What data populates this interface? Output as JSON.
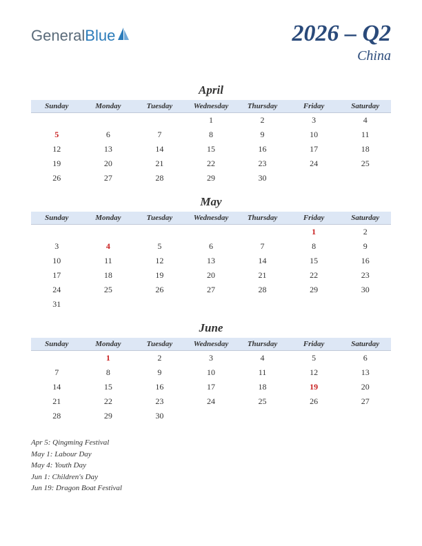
{
  "logo": {
    "part1": "General",
    "part2": "Blue"
  },
  "title": {
    "main": "2026 – Q2",
    "sub": "China"
  },
  "colors": {
    "header_bg": "#dde7f5",
    "title_color": "#2a4a7a",
    "holiday_color": "#c82020",
    "logo_general": "#5a6b7a",
    "logo_blue": "#2b7bb9"
  },
  "day_headers": [
    "Sunday",
    "Monday",
    "Tuesday",
    "Wednesday",
    "Thursday",
    "Friday",
    "Saturday"
  ],
  "months": [
    {
      "name": "April",
      "weeks": [
        [
          "",
          "",
          "",
          "1",
          "2",
          "3",
          "4"
        ],
        [
          "5",
          "6",
          "7",
          "8",
          "9",
          "10",
          "11"
        ],
        [
          "12",
          "13",
          "14",
          "15",
          "16",
          "17",
          "18"
        ],
        [
          "19",
          "20",
          "21",
          "22",
          "23",
          "24",
          "25"
        ],
        [
          "26",
          "27",
          "28",
          "29",
          "30",
          "",
          ""
        ]
      ],
      "holidays": [
        "5"
      ]
    },
    {
      "name": "May",
      "weeks": [
        [
          "",
          "",
          "",
          "",
          "",
          "1",
          "2"
        ],
        [
          "3",
          "4",
          "5",
          "6",
          "7",
          "8",
          "9"
        ],
        [
          "10",
          "11",
          "12",
          "13",
          "14",
          "15",
          "16"
        ],
        [
          "17",
          "18",
          "19",
          "20",
          "21",
          "22",
          "23"
        ],
        [
          "24",
          "25",
          "26",
          "27",
          "28",
          "29",
          "30"
        ],
        [
          "31",
          "",
          "",
          "",
          "",
          "",
          ""
        ]
      ],
      "holidays": [
        "1",
        "4"
      ]
    },
    {
      "name": "June",
      "weeks": [
        [
          "",
          "1",
          "2",
          "3",
          "4",
          "5",
          "6"
        ],
        [
          "7",
          "8",
          "9",
          "10",
          "11",
          "12",
          "13"
        ],
        [
          "14",
          "15",
          "16",
          "17",
          "18",
          "19",
          "20"
        ],
        [
          "21",
          "22",
          "23",
          "24",
          "25",
          "26",
          "27"
        ],
        [
          "28",
          "29",
          "30",
          "",
          "",
          "",
          ""
        ]
      ],
      "holidays": [
        "1",
        "19"
      ]
    }
  ],
  "holiday_notes": [
    "Apr 5: Qingming Festival",
    "May 1: Labour Day",
    "May 4: Youth Day",
    "Jun 1: Children's Day",
    "Jun 19: Dragon Boat Festival"
  ]
}
